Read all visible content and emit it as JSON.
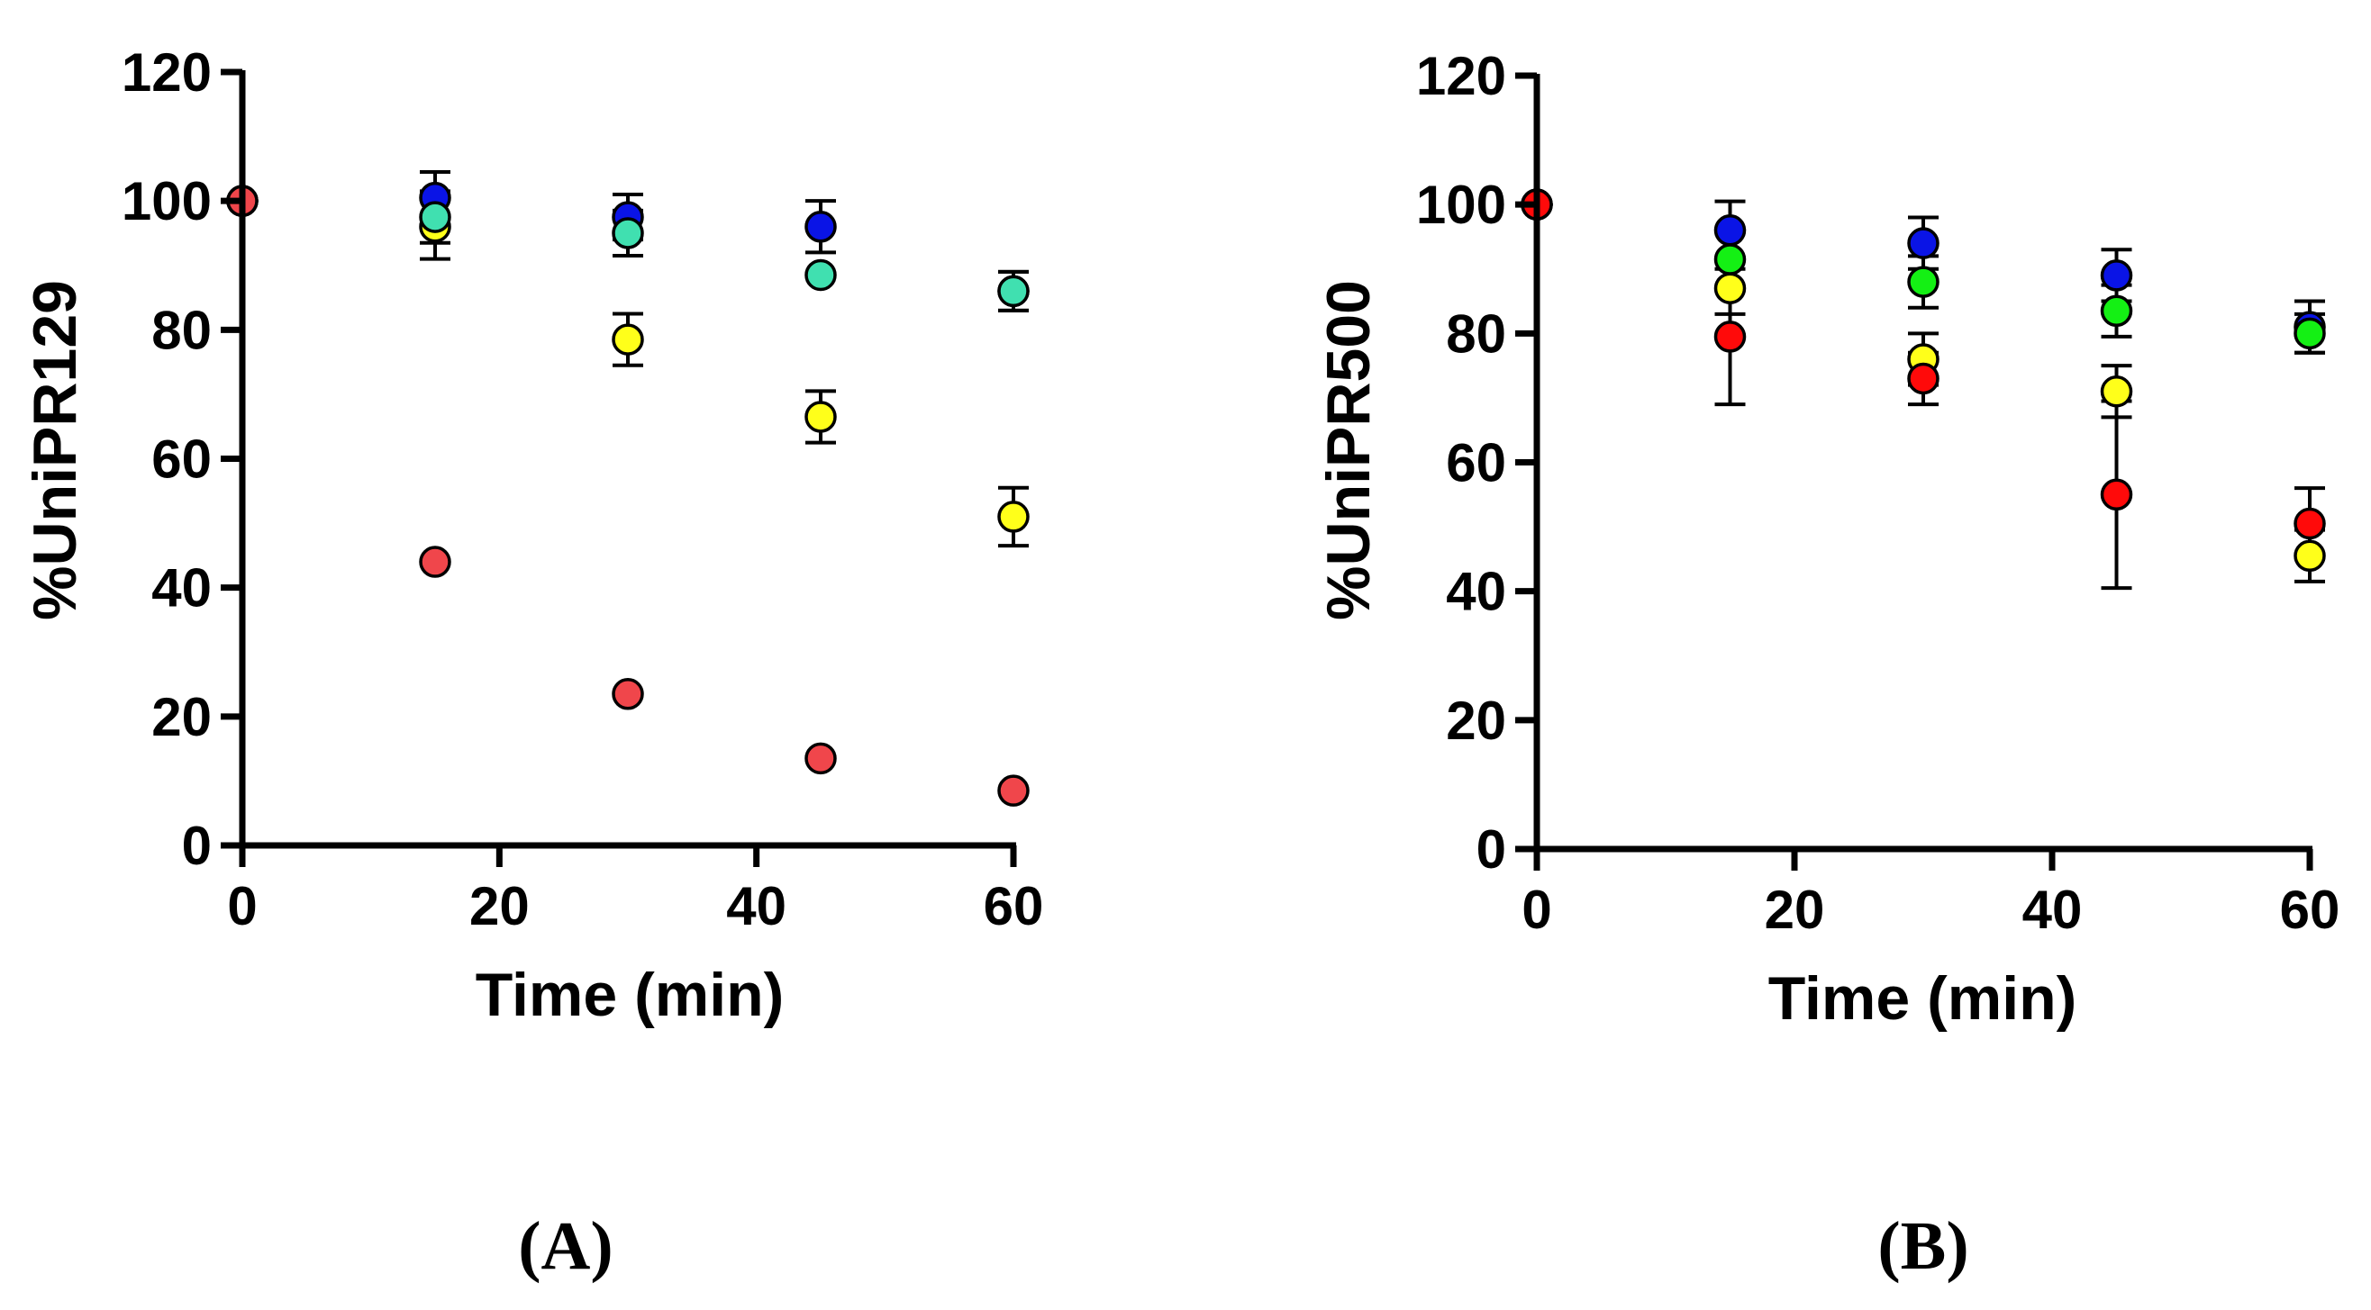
{
  "chart_data": [
    {
      "type": "scatter",
      "panel_label": "(A)",
      "xlabel": "Time (min)",
      "ylabel": "%UniPR129",
      "xlim": [
        0,
        60
      ],
      "ylim": [
        0,
        120
      ],
      "xticks": [
        0,
        20,
        40,
        60
      ],
      "yticks": [
        0,
        20,
        40,
        60,
        80,
        100,
        120
      ],
      "x": [
        0,
        15,
        30,
        45,
        60
      ],
      "series": [
        {
          "name": "blue",
          "color": "#0a14e6",
          "values": [
            100,
            100.5,
            97.5,
            96,
            86
          ],
          "errors": [
            0,
            4,
            3.5,
            4,
            3
          ]
        },
        {
          "name": "yellow",
          "color": "#ffff1a",
          "values": [
            100,
            96,
            78.5,
            66.5,
            51
          ],
          "errors": [
            0,
            5,
            4,
            4,
            4.5
          ]
        },
        {
          "name": "teal",
          "color": "#40e0b0",
          "values": [
            100,
            97.5,
            95,
            88.5,
            86
          ],
          "errors": [
            0,
            4,
            3.5,
            0,
            3
          ]
        },
        {
          "name": "red",
          "color": "#f0464b",
          "values": [
            100,
            44,
            23.5,
            13.5,
            8.5
          ],
          "errors": [
            0,
            0,
            0,
            0,
            0
          ]
        }
      ]
    },
    {
      "type": "scatter",
      "panel_label": "(B)",
      "xlabel": "Time (min)",
      "ylabel": "%UniPR500",
      "xlim": [
        0,
        60
      ],
      "ylim": [
        0,
        120
      ],
      "xticks": [
        0,
        20,
        40,
        60
      ],
      "yticks": [
        0,
        20,
        40,
        60,
        80,
        100,
        120
      ],
      "x": [
        0,
        15,
        30,
        45,
        60
      ],
      "series": [
        {
          "name": "blue",
          "color": "#0a14e6",
          "values": [
            100,
            96,
            94,
            89,
            81
          ],
          "errors": [
            0,
            4.5,
            4,
            4,
            4
          ]
        },
        {
          "name": "yellow",
          "color": "#ffff1a",
          "values": [
            100,
            87,
            76,
            71,
            45.5
          ],
          "errors": [
            0,
            4,
            4,
            4,
            4
          ]
        },
        {
          "name": "green",
          "color": "#14f014",
          "values": [
            100,
            91.5,
            88,
            83.5,
            80
          ],
          "errors": [
            0,
            4,
            4,
            4,
            3
          ]
        },
        {
          "name": "red",
          "color": "#ff0a0a",
          "values": [
            100,
            79.5,
            73,
            55,
            50.5
          ],
          "errors": [
            0,
            10.5,
            4,
            14.5,
            5.5
          ]
        }
      ]
    }
  ]
}
